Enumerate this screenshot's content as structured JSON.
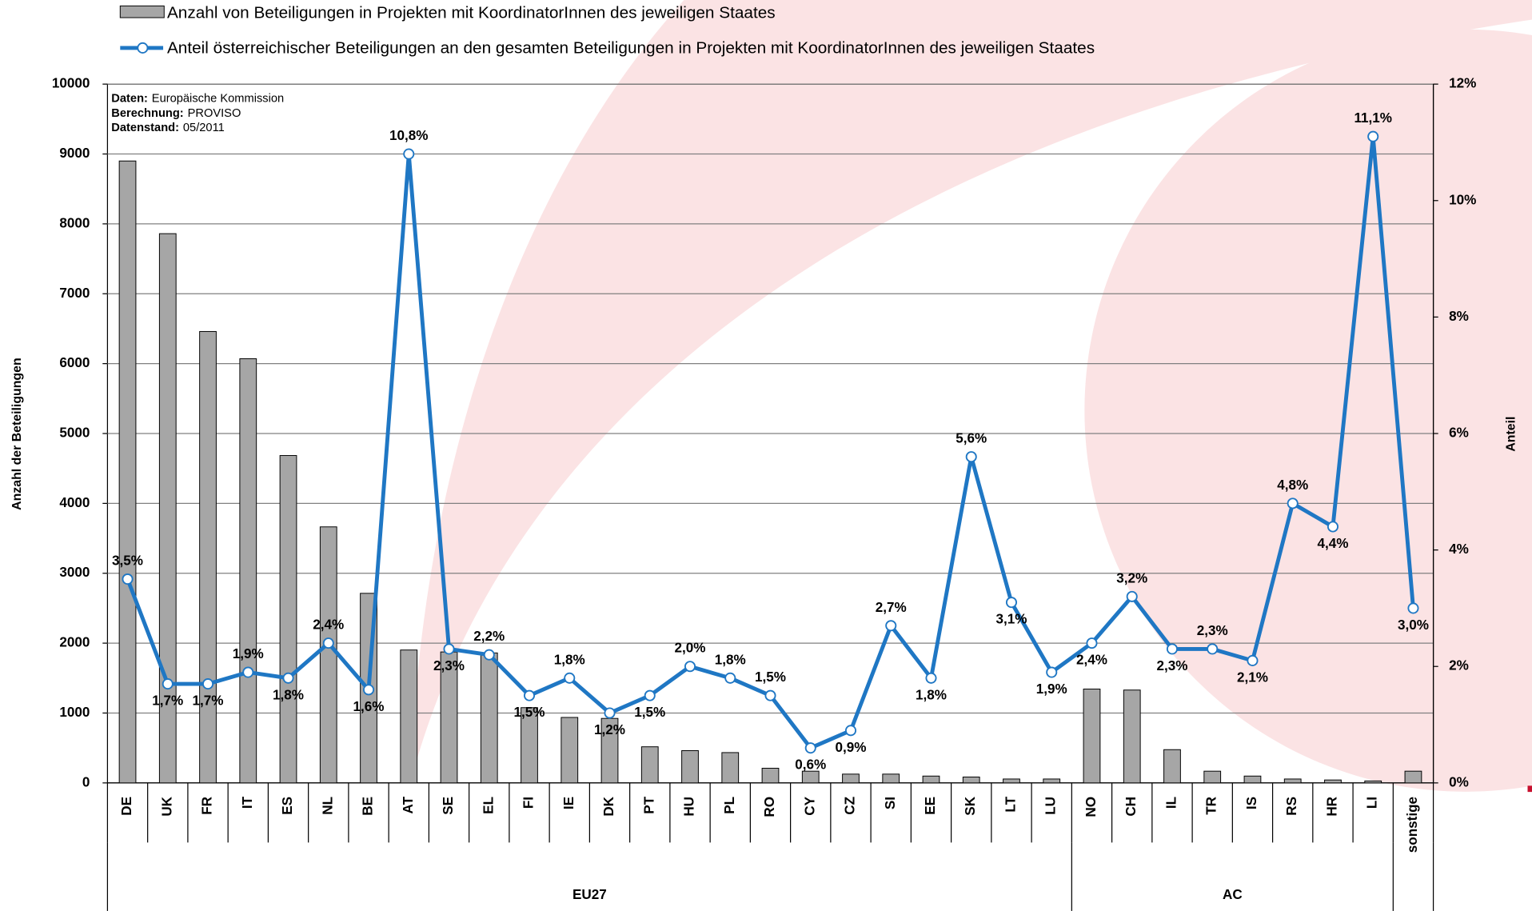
{
  "chart_data": {
    "type": "bar-line",
    "legend": [
      "Anzahl von Beteiligungen in Projekten mit KoordinatorInnen des jeweiligen Staates",
      "Anteil österreichischer Beteiligungen an den gesamten Beteiligungen in  Projekten mit KoordinatorInnen des jeweiligen Staates"
    ],
    "y_label": "Anzahl der Beteiligungen",
    "y2_label": "Anteil",
    "notes": [
      {
        "label": "Daten:",
        "text": "Europäische Kommission"
      },
      {
        "label": "Berechnung:",
        "text": "PROVISO"
      },
      {
        "label": "Datenstand:",
        "text": "05/2011"
      }
    ],
    "logo": "proviso",
    "categories": [
      "DE",
      "UK",
      "FR",
      "IT",
      "ES",
      "NL",
      "BE",
      "AT",
      "SE",
      "EL",
      "FI",
      "IE",
      "DK",
      "PT",
      "HU",
      "PL",
      "RO",
      "CY",
      "CZ",
      "SI",
      "EE",
      "SK",
      "LT",
      "LU",
      "NO",
      "CH",
      "IL",
      "TR",
      "IS",
      "RS",
      "HR",
      "LI",
      "sonstige"
    ],
    "groups": [
      {
        "label": "EU27",
        "count": 24
      },
      {
        "label": "AC",
        "count": 8
      }
    ],
    "series": [
      {
        "name": "Anzahl von Beteiligungen in Projekten mit KoordinatorInnen des jeweiligen Staates",
        "kind": "bar",
        "color": "#a6a6a6",
        "values": [
          8900,
          7860,
          6460,
          6070,
          4685,
          3664,
          2713,
          1902,
          1874,
          1860,
          1077,
          937,
          923,
          517,
          462,
          434,
          210,
          168,
          126,
          126,
          98,
          84,
          56,
          56,
          1343,
          1329,
          476,
          168,
          98,
          56,
          42,
          28,
          168
        ]
      },
      {
        "name": "Anteil österreichischer Beteiligungen an den gesamten Beteiligungen in  Projekten mit KoordinatorInnen des jeweiligen Staates",
        "kind": "line",
        "axis": "y2",
        "color": "#1f77c4",
        "values": [
          3.5,
          1.7,
          1.7,
          1.9,
          1.8,
          2.4,
          1.6,
          10.8,
          2.3,
          2.2,
          1.5,
          1.8,
          1.2,
          1.5,
          2.0,
          1.8,
          1.5,
          0.6,
          0.9,
          2.7,
          1.8,
          5.6,
          3.1,
          1.9,
          2.4,
          3.2,
          2.3,
          2.3,
          2.1,
          4.8,
          4.4,
          11.1,
          3.0
        ],
        "value_labels": [
          "3,5%",
          "1,7%",
          "1,7%",
          "1,9%",
          "1,8%",
          "2,4%",
          "1,6%",
          "10,8%",
          "2,3%",
          "2,2%",
          "1,5%",
          "1,8%",
          "1,2%",
          "1,5%",
          "2,0%",
          "1,8%",
          "1,5%",
          "0,6%",
          "0,9%",
          "2,7%",
          "1,8%",
          "5,6%",
          "3,1%",
          "1,9%",
          "2,4%",
          "3,2%",
          "2,3%",
          "2,3%",
          "2,1%",
          "4,8%",
          "4,4%",
          "11,1%",
          "3,0%"
        ]
      }
    ],
    "ylim": [
      0,
      10000
    ],
    "yticks": [
      0,
      1000,
      2000,
      3000,
      4000,
      5000,
      6000,
      7000,
      8000,
      9000,
      10000
    ],
    "y2lim": [
      0,
      12
    ],
    "y2ticks": [
      {
        "value": 0,
        "label": "0%"
      },
      {
        "value": 2,
        "label": "2%"
      },
      {
        "value": 4,
        "label": "4%"
      },
      {
        "value": 6,
        "label": "6%"
      },
      {
        "value": 8,
        "label": "8%"
      },
      {
        "value": 10,
        "label": "10%"
      },
      {
        "value": 12,
        "label": "12%"
      }
    ],
    "grid": true
  }
}
